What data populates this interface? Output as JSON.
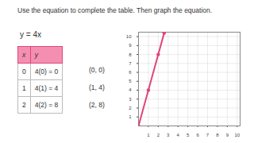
{
  "instruction": "Use the equation to complete the table. Then graph the equation.",
  "equation": "y = 4x",
  "table": {
    "header": [
      "x",
      "y"
    ],
    "rows": [
      [
        "0",
        "4(0) = 0"
      ],
      [
        "1",
        "4(1) = 4"
      ],
      [
        "2",
        "4(2) = 8"
      ]
    ]
  },
  "pairs": [
    "(0, 0)",
    "(1, 4)",
    "(2, 8)"
  ],
  "chart_data": {
    "type": "line",
    "x": [
      0,
      1,
      2,
      2.6
    ],
    "values": [
      0,
      4,
      8,
      10.4
    ],
    "color": "#e0457b",
    "marker": "circle",
    "xlim": [
      0,
      10.3
    ],
    "ylim": [
      0,
      10.5
    ],
    "xticks": [
      1,
      2,
      3,
      4,
      5,
      6,
      7,
      8,
      9,
      10
    ],
    "yticks": [
      1,
      2,
      3,
      4,
      5,
      6,
      7,
      8,
      9,
      10
    ],
    "grid": true
  }
}
